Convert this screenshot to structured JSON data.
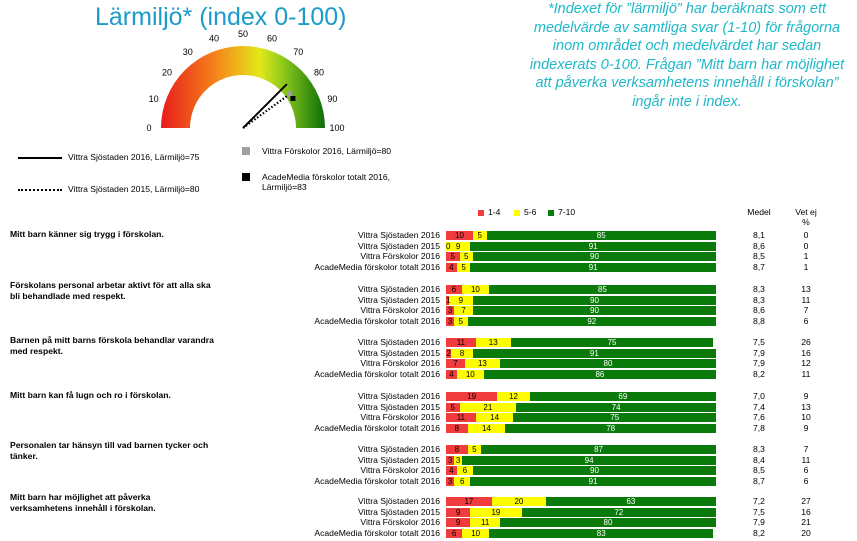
{
  "title": "Lärmiljö* (index 0-100)",
  "note": "*Indexet för ”lärmiljö” har beräknats som ett medelvärde av samtliga svar (1-10) för frågorna inom området och medelvärdet har sedan indexerats 0-100. Frågan ”Mitt barn har möjlighet att påverka verksamhetens innehåll i förskolan” ingår inte i index.",
  "colors": {
    "red": "#f03c3c",
    "yellow": "#fdfd00",
    "green": "#0a7a0a",
    "title": "#1a9bc9",
    "note": "#1fb8c9",
    "grey": "#a0a0a0"
  },
  "gauge": {
    "tick_labels": [
      "0",
      "10",
      "20",
      "30",
      "40",
      "50",
      "60",
      "70",
      "80",
      "90",
      "100"
    ],
    "needles": [
      {
        "label": "Vittra Sjöstaden 2016, Lärmiljö=75",
        "value": 75,
        "style": "solid-line"
      },
      {
        "label": "Vittra Sjöstaden 2015, Lärmiljö=80",
        "value": 80,
        "style": "dotted-line"
      },
      {
        "label": "Vittra Förskolor 2016, Lärmiljö=80",
        "value": 80,
        "style": "grey-square"
      },
      {
        "label": "AcadeMedia förskolor totalt 2016, Lärmiljö=83",
        "value": 83,
        "style": "black-square"
      }
    ]
  },
  "chart_data": {
    "type": "bar",
    "stacked": true,
    "legend": [
      "1-4",
      "5-6",
      "7-10"
    ],
    "column_headers": {
      "medel": "Medel",
      "vet_ej": "Vet ej",
      "vet_ej_unit": "%"
    },
    "groups": [
      {
        "question": "Mitt barn känner sig trygg i förskolan.",
        "rows": [
          {
            "label": "Vittra Sjöstaden 2016",
            "values": [
              10,
              5,
              85
            ],
            "medel": "8,1",
            "vet_ej": "0"
          },
          {
            "label": "Vittra Sjöstaden 2015",
            "values": [
              0,
              9,
              91
            ],
            "medel": "8,6",
            "vet_ej": "0"
          },
          {
            "label": "Vittra Förskolor 2016",
            "values": [
              5,
              5,
              90
            ],
            "medel": "8,5",
            "vet_ej": "1"
          },
          {
            "label": "AcadeMedia förskolor totalt 2016",
            "values": [
              4,
              5,
              91
            ],
            "medel": "8,7",
            "vet_ej": "1"
          }
        ]
      },
      {
        "question": "Förskolans personal arbetar aktivt för att alla ska bli behandlade med respekt.",
        "rows": [
          {
            "label": "Vittra Sjöstaden 2016",
            "values": [
              6,
              10,
              85
            ],
            "medel": "8,3",
            "vet_ej": "13"
          },
          {
            "label": "Vittra Sjöstaden 2015",
            "values": [
              1,
              9,
              90
            ],
            "medel": "8,3",
            "vet_ej": "11"
          },
          {
            "label": "Vittra Förskolor 2016",
            "values": [
              3,
              7,
              90
            ],
            "medel": "8,6",
            "vet_ej": "7"
          },
          {
            "label": "AcadeMedia förskolor totalt 2016",
            "values": [
              3,
              5,
              92
            ],
            "medel": "8,8",
            "vet_ej": "6"
          }
        ]
      },
      {
        "question": "Barnen på mitt barns förskola behandlar varandra med respekt.",
        "rows": [
          {
            "label": "Vittra Sjöstaden 2016",
            "values": [
              11,
              13,
              75
            ],
            "medel": "7,5",
            "vet_ej": "26"
          },
          {
            "label": "Vittra Sjöstaden 2015",
            "values": [
              2,
              8,
              91
            ],
            "medel": "7,9",
            "vet_ej": "16"
          },
          {
            "label": "Vittra Förskolor 2016",
            "values": [
              7,
              13,
              80
            ],
            "medel": "7,9",
            "vet_ej": "12"
          },
          {
            "label": "AcadeMedia förskolor totalt 2016",
            "values": [
              4,
              10,
              86
            ],
            "medel": "8,2",
            "vet_ej": "11"
          }
        ]
      },
      {
        "question": "Mitt barn kan få lugn och ro i förskolan.",
        "rows": [
          {
            "label": "Vittra Sjöstaden 2016",
            "values": [
              19,
              12,
              69
            ],
            "medel": "7,0",
            "vet_ej": "9"
          },
          {
            "label": "Vittra Sjöstaden 2015",
            "values": [
              5,
              21,
              74
            ],
            "medel": "7,4",
            "vet_ej": "13"
          },
          {
            "label": "Vittra Förskolor 2016",
            "values": [
              11,
              14,
              75
            ],
            "medel": "7,6",
            "vet_ej": "10"
          },
          {
            "label": "AcadeMedia förskolor totalt 2016",
            "values": [
              8,
              14,
              78
            ],
            "medel": "7,8",
            "vet_ej": "9"
          }
        ]
      },
      {
        "question": "Personalen tar hänsyn till vad barnen tycker och tänker.",
        "rows": [
          {
            "label": "Vittra Sjöstaden 2016",
            "values": [
              8,
              5,
              87
            ],
            "medel": "8,3",
            "vet_ej": "7"
          },
          {
            "label": "Vittra Sjöstaden 2015",
            "values": [
              3,
              3,
              94
            ],
            "medel": "8,4",
            "vet_ej": "11"
          },
          {
            "label": "Vittra Förskolor 2016",
            "values": [
              4,
              6,
              90
            ],
            "medel": "8,5",
            "vet_ej": "6"
          },
          {
            "label": "AcadeMedia förskolor totalt 2016",
            "values": [
              3,
              6,
              91
            ],
            "medel": "8,7",
            "vet_ej": "6"
          }
        ]
      },
      {
        "question": "Mitt barn har möjlighet att påverka verksamhetens innehåll i förskolan.",
        "rows": [
          {
            "label": "Vittra Sjöstaden 2016",
            "values": [
              17,
              20,
              63
            ],
            "medel": "7,2",
            "vet_ej": "27"
          },
          {
            "label": "Vittra Sjöstaden 2015",
            "values": [
              9,
              19,
              72
            ],
            "medel": "7,5",
            "vet_ej": "16"
          },
          {
            "label": "Vittra Förskolor 2016",
            "values": [
              9,
              11,
              80
            ],
            "medel": "7,9",
            "vet_ej": "21"
          },
          {
            "label": "AcadeMedia förskolor totalt 2016",
            "values": [
              6,
              10,
              83
            ],
            "medel": "8,2",
            "vet_ej": "20"
          }
        ]
      }
    ]
  }
}
